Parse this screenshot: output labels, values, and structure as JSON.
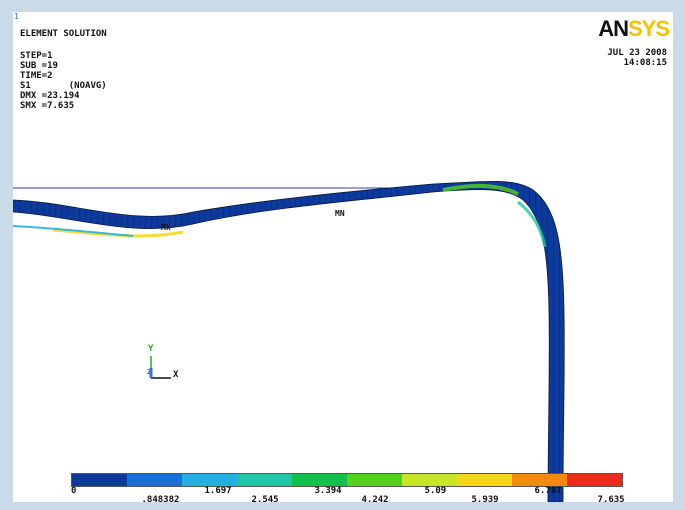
{
  "header": {
    "window_number": "1",
    "title": "ELEMENT SOLUTION",
    "step": "STEP=1",
    "sub": "SUB =19",
    "time": "TIME=2",
    "item": "S1       (NOAVG)",
    "dmx": "DMX =23.194",
    "smx": "SMX =7.635"
  },
  "branding": {
    "logo_part1": "AN",
    "logo_part2": "SYS"
  },
  "timestamp": {
    "date": "JUL 23 2008",
    "time": "14:08:15"
  },
  "model": {
    "marker_mn": "MN",
    "marker_mx": "MX"
  },
  "triad": {
    "y_label": "Y",
    "x_label": "X",
    "z_label": "Z"
  },
  "legend": {
    "colors": [
      "#0d3a9b",
      "#1a6fd8",
      "#23b0e0",
      "#1fc7a6",
      "#13c04c",
      "#55d21d",
      "#c9e52a",
      "#f3d51a",
      "#f28a10",
      "#ec2a1a"
    ],
    "top_labels": [
      "0",
      "1.697",
      "3.394",
      "5.09",
      "6.787"
    ],
    "bottom_labels": [
      ".848382",
      "2.545",
      "4.242",
      "5.939",
      "7.635"
    ]
  }
}
